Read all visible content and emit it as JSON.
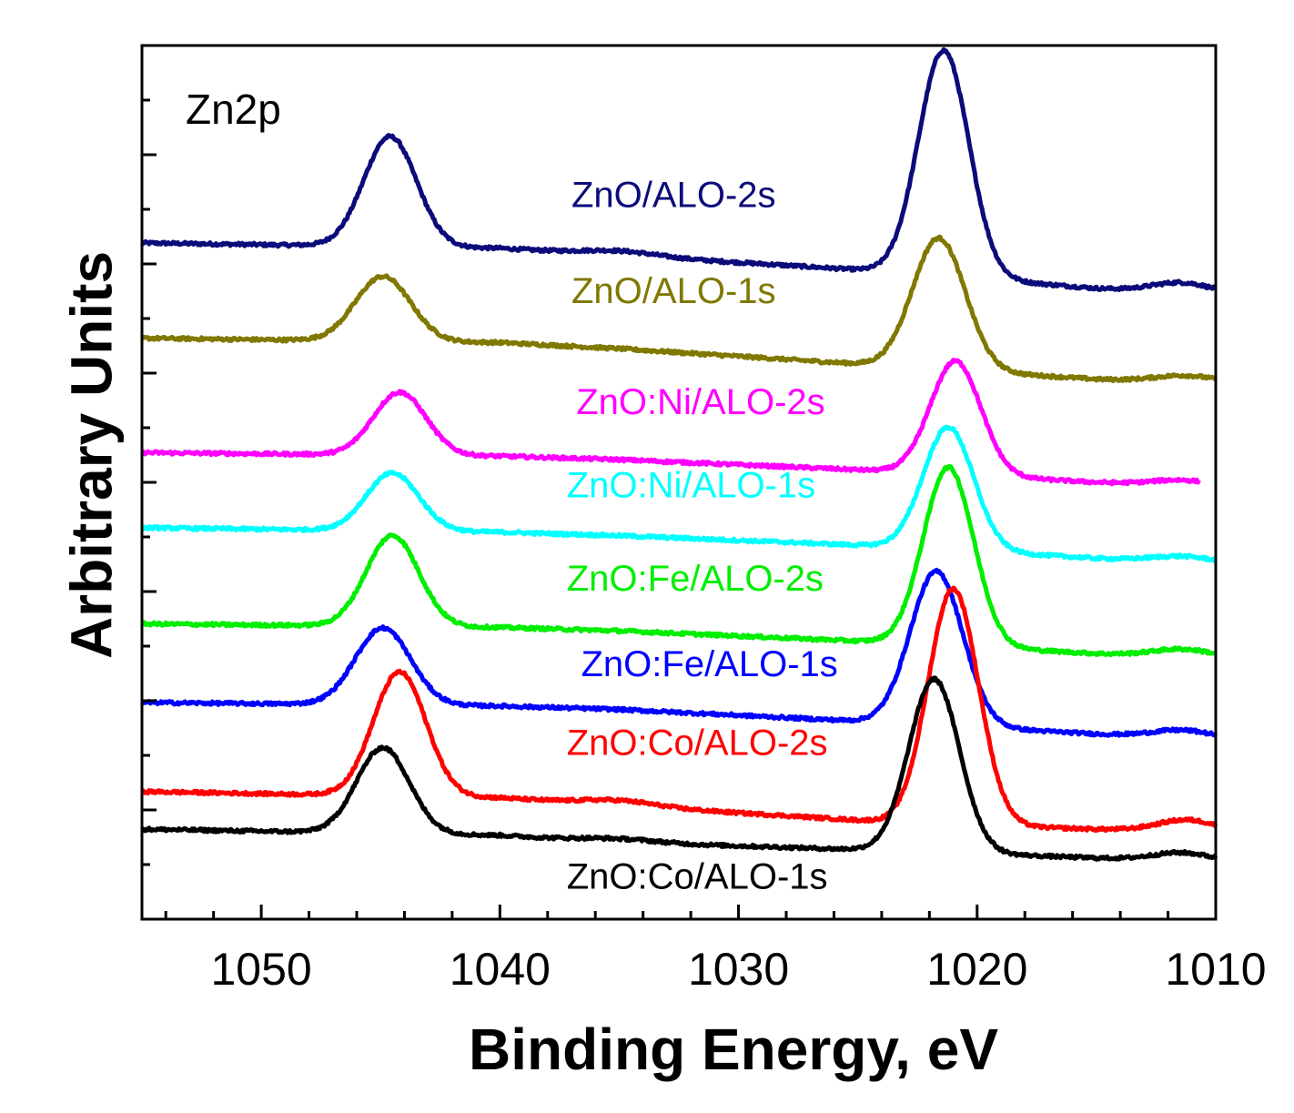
{
  "chart_data": {
    "type": "line",
    "title": "",
    "panel_label": "Zn2p",
    "xlabel": "Binding Energy, eV",
    "ylabel": "Arbitrary Units",
    "xlim": [
      1055,
      1010
    ],
    "x_reversed": true,
    "ylim": [
      0,
      100
    ],
    "x_ticks": [
      1050,
      1040,
      1030,
      1020,
      1010
    ],
    "x_tick_labels": [
      "1050",
      "1040",
      "1030",
      "1020",
      "1010"
    ],
    "y_tick_labels_shown": false,
    "grid": false,
    "legend": "inline labels beside each curve",
    "series": [
      {
        "name": "ZnO/ALO-2s",
        "color": "#0b0b7a",
        "baseline": [
          [
            1055,
            77.4
          ],
          [
            1040,
            76.8
          ],
          [
            1035,
            76.0
          ],
          [
            1023,
            74.0
          ],
          [
            1015,
            72.2
          ],
          [
            1010,
            71.6
          ]
        ],
        "peaks": [
          [
            1044.6,
            12.6,
            1.1
          ],
          [
            1021.4,
            25.8,
            1.05
          ],
          [
            1011.4,
            1.1,
            1.2
          ],
          [
            1035.0,
            0.5,
            1.5
          ]
        ],
        "label_pos": [
          1037,
          81.5
        ]
      },
      {
        "name": "ZnO/ALO-1s",
        "color": "#807800",
        "baseline": [
          [
            1055,
            66.5
          ],
          [
            1040,
            66.0
          ],
          [
            1035,
            65.3
          ],
          [
            1023,
            63.2
          ],
          [
            1015,
            61.8
          ],
          [
            1010,
            61.3
          ]
        ],
        "peaks": [
          [
            1044.9,
            7.4,
            1.15
          ],
          [
            1021.6,
            15.0,
            1.1
          ],
          [
            1011.2,
            0.8,
            1.3
          ]
        ],
        "label_pos": [
          1037,
          70.5
        ]
      },
      {
        "name": "ZnO:Ni/ALO-2s",
        "color": "#ff00ff",
        "baseline": [
          [
            1055,
            53.4
          ],
          [
            1040,
            53.0
          ],
          [
            1035,
            52.6
          ],
          [
            1023,
            51.2
          ],
          [
            1015,
            50.0
          ],
          [
            1010.7,
            49.6
          ]
        ],
        "peaks": [
          [
            1044.2,
            7.2,
            1.1
          ],
          [
            1020.9,
            13.0,
            1.05
          ],
          [
            1011.4,
            0.6,
            1.2
          ]
        ],
        "x_end": 1010.7,
        "label_pos": [
          1036.8,
          57.8
        ]
      },
      {
        "name": "ZnO:Ni/ALO-1s",
        "color": "#00ffff",
        "baseline": [
          [
            1055,
            44.8
          ],
          [
            1040,
            44.3
          ],
          [
            1035,
            43.9
          ],
          [
            1023,
            42.6
          ],
          [
            1015,
            41.3
          ],
          [
            1010,
            40.8
          ]
        ],
        "peaks": [
          [
            1044.5,
            6.6,
            1.1
          ],
          [
            1021.2,
            14.0,
            1.05
          ],
          [
            1011.4,
            0.6,
            1.2
          ]
        ],
        "label_pos": [
          1037.2,
          48.3
        ]
      },
      {
        "name": "ZnO:Fe/ALO-2s",
        "color": "#00ee00",
        "baseline": [
          [
            1055,
            33.8
          ],
          [
            1040,
            33.4
          ],
          [
            1035,
            33.0
          ],
          [
            1023,
            31.6
          ],
          [
            1015,
            30.4
          ],
          [
            1010,
            30.0
          ]
        ],
        "peaks": [
          [
            1044.5,
            10.4,
            1.1
          ],
          [
            1021.2,
            20.4,
            1.05
          ],
          [
            1011.4,
            0.8,
            1.2
          ]
        ],
        "label_pos": [
          1037.2,
          37.6
        ]
      },
      {
        "name": "ZnO:Fe/ALO-1s",
        "color": "#0000ff",
        "baseline": [
          [
            1055,
            24.8
          ],
          [
            1040,
            24.4
          ],
          [
            1035,
            24.0
          ],
          [
            1023,
            22.4
          ],
          [
            1015,
            21.2
          ],
          [
            1010,
            20.7
          ]
        ],
        "peaks": [
          [
            1044.9,
            8.8,
            1.15
          ],
          [
            1021.7,
            17.6,
            1.1
          ],
          [
            1011.4,
            0.8,
            1.2
          ]
        ],
        "label_pos": [
          1036.6,
          27.8
        ]
      },
      {
        "name": "ZnO:Co/ALO-2s",
        "color": "#ff0000",
        "baseline": [
          [
            1055,
            14.6
          ],
          [
            1040,
            13.9
          ],
          [
            1035,
            13.0
          ],
          [
            1023,
            11.0
          ],
          [
            1015,
            10.3
          ],
          [
            1010,
            10.0
          ]
        ],
        "peaks": [
          [
            1044.2,
            14.2,
            1.1
          ],
          [
            1021.0,
            27.0,
            1.05
          ],
          [
            1011.2,
            1.3,
            1.2
          ],
          [
            1035.0,
            0.6,
            1.5
          ]
        ],
        "label_pos": [
          1037.2,
          18.8
        ]
      },
      {
        "name": "ZnO:Co/ALO-1s",
        "color": "#000000",
        "baseline": [
          [
            1055,
            10.3
          ],
          [
            1040,
            9.6
          ],
          [
            1035,
            8.8
          ],
          [
            1023,
            7.8
          ],
          [
            1015,
            7.0
          ],
          [
            1010,
            6.6
          ]
        ],
        "peaks": [
          [
            1044.9,
            9.8,
            1.1
          ],
          [
            1021.8,
            19.8,
            1.05
          ],
          [
            1011.4,
            0.9,
            1.2
          ],
          [
            1035.0,
            0.4,
            1.5
          ]
        ],
        "label_pos": [
          1037.2,
          3.5
        ]
      }
    ]
  }
}
